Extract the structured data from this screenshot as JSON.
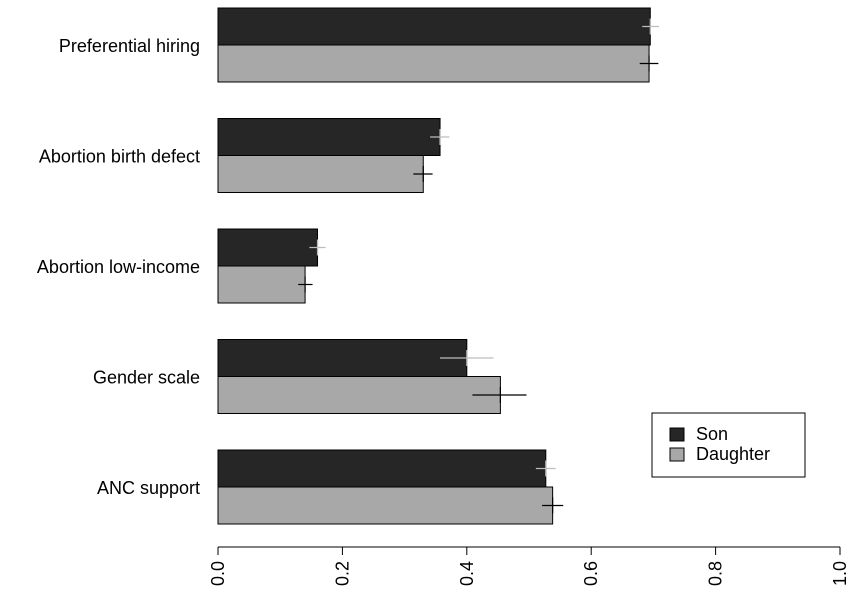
{
  "chart_data": {
    "type": "bar",
    "orientation": "horizontal",
    "categories": [
      "Preferential hiring",
      "Abortion birth defect",
      "Abortion low-income",
      "Gender scale",
      "ANC support"
    ],
    "series": [
      {
        "name": "Son",
        "color": "#262626",
        "error_color": "#bdbdbd",
        "values": [
          0.695,
          0.357,
          0.16,
          0.4,
          0.527
        ],
        "error_low": [
          0.682,
          0.341,
          0.147,
          0.357,
          0.511
        ],
        "error_high": [
          0.709,
          0.372,
          0.173,
          0.443,
          0.543
        ]
      },
      {
        "name": "Daughter",
        "color": "#a8a8a8",
        "error_color": "#000000",
        "values": [
          0.693,
          0.33,
          0.14,
          0.454,
          0.538
        ],
        "error_low": [
          0.678,
          0.314,
          0.129,
          0.409,
          0.521
        ],
        "error_high": [
          0.708,
          0.345,
          0.152,
          0.496,
          0.555
        ]
      }
    ],
    "xlim": [
      0,
      1
    ],
    "ticks": [
      "0.0",
      "0.2",
      "0.4",
      "0.6",
      "0.8",
      "1.0"
    ],
    "tick_values": [
      0,
      0.2,
      0.4,
      0.6,
      0.8,
      1.0
    ],
    "legend_position": "bottom-right",
    "grid": false
  }
}
